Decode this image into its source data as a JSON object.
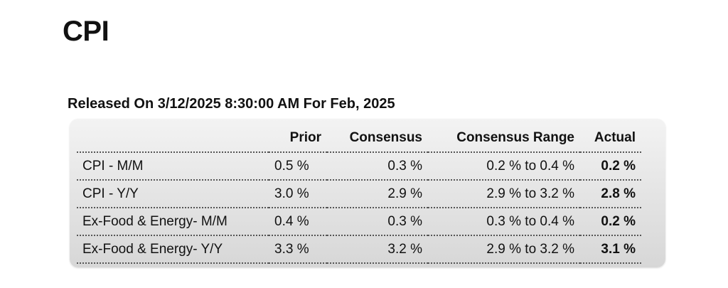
{
  "page_title": "CPI",
  "release": {
    "text": "Released On 3/12/2025 8:30:00 AM For Feb, 2025"
  },
  "table": {
    "headers": {
      "label": "",
      "prior": "Prior",
      "consensus": "Consensus",
      "consensus_range": "Consensus Range",
      "actual": "Actual"
    },
    "rows": [
      {
        "label": "CPI - M/M",
        "prior": "0.5 %",
        "consensus": "0.3 %",
        "consensus_range": "0.2 % to 0.4 %",
        "actual": "0.2 %"
      },
      {
        "label": "CPI - Y/Y",
        "prior": "3.0 %",
        "consensus": "2.9 %",
        "consensus_range": "2.9 % to 3.2 %",
        "actual": "2.8 %"
      },
      {
        "label": "Ex-Food & Energy- M/M",
        "prior": "0.4 %",
        "consensus": "0.3 %",
        "consensus_range": "0.3 % to 0.4 %",
        "actual": "0.2 %"
      },
      {
        "label": "Ex-Food & Energy- Y/Y",
        "prior": "3.3 %",
        "consensus": "3.2 %",
        "consensus_range": "2.9 % to 3.2 %",
        "actual": "3.1 %"
      }
    ]
  }
}
